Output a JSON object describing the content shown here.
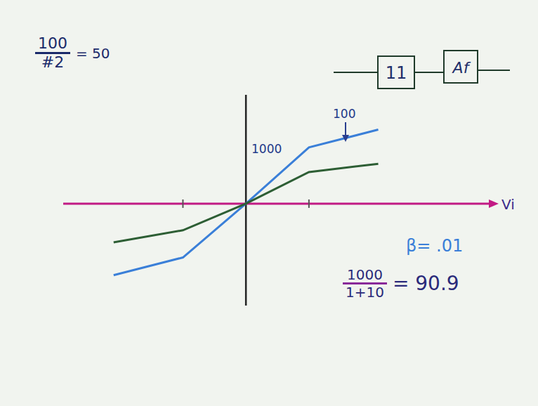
{
  "chart_data": {
    "type": "line",
    "x": [
      -2.1,
      -1,
      0,
      1,
      2.1
    ],
    "series": [
      {
        "color": "#3a7fd8",
        "values": [
          -1.13,
          -0.85,
          0,
          0.89,
          1.17
        ]
      },
      {
        "color": "#2d5e34",
        "values": [
          -0.61,
          -0.42,
          0,
          0.5,
          0.63
        ]
      }
    ],
    "xlim": [
      -2.9,
      3.9
    ],
    "ylim": [
      -1.61,
      1.72
    ],
    "xticks": [
      -1,
      1
    ],
    "tick_labels": false,
    "x_label": "Vi",
    "annotations": {
      "slope_label": "1000",
      "arrow_label": "100",
      "gain_note": {
        "numerator": "100",
        "denominator": "#2",
        "result": "= 50"
      },
      "beta": "β= .01",
      "closed_loop": {
        "numerator": "1000",
        "denominator": "1+10",
        "result": "= 90.9"
      },
      "block_diagram": [
        "11",
        "Af"
      ]
    }
  }
}
